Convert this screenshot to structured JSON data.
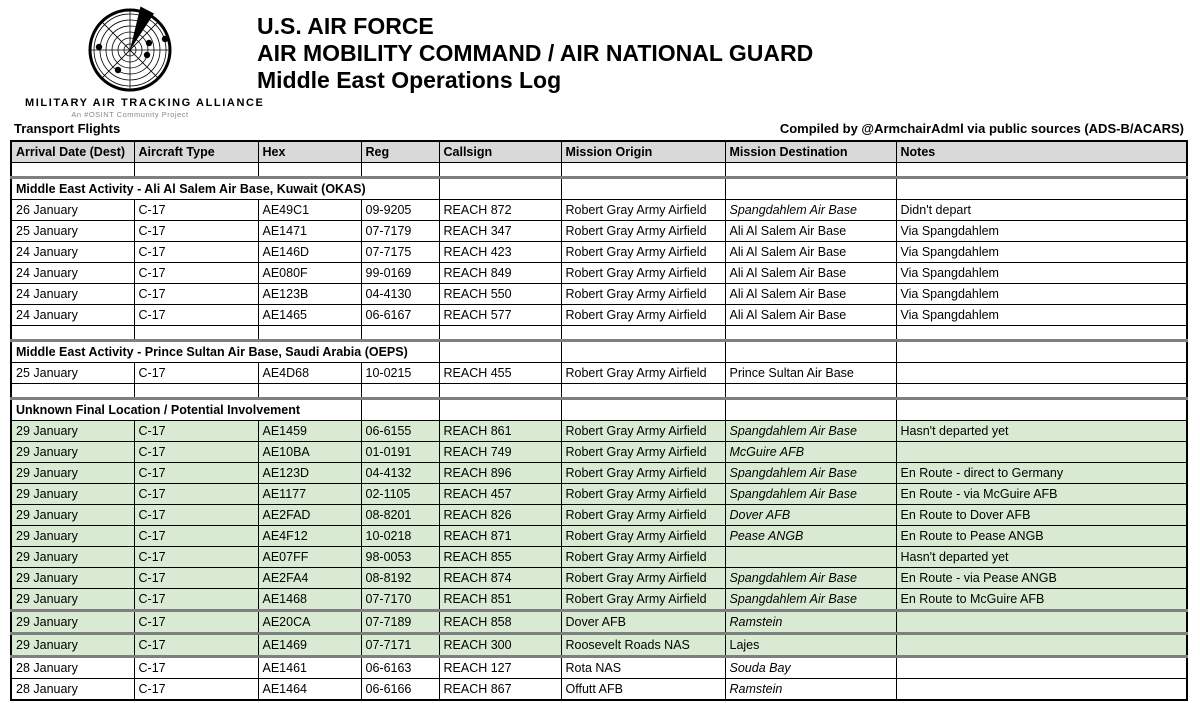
{
  "logo": {
    "org_name": "MILITARY AIR TRACKING ALLIANCE",
    "tagline": "An #OSINT Community Project"
  },
  "header": {
    "line1": "U.S. AIR FORCE",
    "line2": "AIR MOBILITY COMMAND / AIR NATIONAL GUARD",
    "line3": "Middle East Operations Log"
  },
  "subheader": {
    "left": "Transport Flights",
    "right": "Compiled by @ArmchairAdml via public sources (ADS-B/ACARS)"
  },
  "colors": {
    "header_bg": "#d9d9d9",
    "highlight_bg": "#d9ead3",
    "border": "#000000",
    "section_divider": "#7f7f7f"
  },
  "table": {
    "columns": [
      "Arrival Date (Dest)",
      "Aircraft Type",
      "Hex",
      "Reg",
      "Callsign",
      "Mission Origin",
      "Mission Destination",
      "Notes"
    ],
    "sections": [
      {
        "title": "Middle East Activity - Ali Al Salem Air Base, Kuwait (OKAS)",
        "title_colspan": 4,
        "rows": [
          {
            "date": "26 January",
            "type": "C-17",
            "hex": "AE49C1",
            "reg": "09-9205",
            "callsign": "REACH 872",
            "origin": "Robert Gray Army Airfield",
            "destination": "Spangdahlem Air Base",
            "dest_italic": true,
            "notes": "Didn't depart",
            "highlight": false
          },
          {
            "date": "25 January",
            "type": "C-17",
            "hex": "AE1471",
            "reg": "07-7179",
            "callsign": "REACH 347",
            "origin": "Robert Gray Army Airfield",
            "destination": "Ali Al Salem Air Base",
            "dest_italic": false,
            "notes": "Via Spangdahlem",
            "highlight": false
          },
          {
            "date": "24 January",
            "type": "C-17",
            "hex": "AE146D",
            "reg": "07-7175",
            "callsign": "REACH 423",
            "origin": "Robert Gray Army Airfield",
            "destination": "Ali Al Salem Air Base",
            "dest_italic": false,
            "notes": "Via Spangdahlem",
            "highlight": false
          },
          {
            "date": "24 January",
            "type": "C-17",
            "hex": "AE080F",
            "reg": "99-0169",
            "callsign": "REACH 849",
            "origin": "Robert Gray Army Airfield",
            "destination": "Ali Al Salem Air Base",
            "dest_italic": false,
            "notes": "Via Spangdahlem",
            "highlight": false
          },
          {
            "date": "24 January",
            "type": "C-17",
            "hex": "AE123B",
            "reg": "04-4130",
            "callsign": "REACH 550",
            "origin": "Robert Gray Army Airfield",
            "destination": "Ali Al Salem Air Base",
            "dest_italic": false,
            "notes": "Via Spangdahlem",
            "highlight": false
          },
          {
            "date": "24 January",
            "type": "C-17",
            "hex": "AE1465",
            "reg": "06-6167",
            "callsign": "REACH 577",
            "origin": "Robert Gray Army Airfield",
            "destination": "Ali Al Salem Air Base",
            "dest_italic": false,
            "notes": "Via Spangdahlem",
            "highlight": false
          }
        ]
      },
      {
        "title": "Middle East Activity - Prince Sultan Air Base, Saudi Arabia (OEPS)",
        "title_colspan": 4,
        "rows": [
          {
            "date": "25 January",
            "type": "C-17",
            "hex": "AE4D68",
            "reg": "10-0215",
            "callsign": "REACH 455",
            "origin": "Robert Gray Army Airfield",
            "destination": "Prince Sultan Air Base",
            "dest_italic": false,
            "notes": "",
            "highlight": false
          }
        ]
      },
      {
        "title": "Unknown Final Location / Potential Involvement",
        "title_colspan": 3,
        "rows": [
          {
            "date": "29 January",
            "type": "C-17",
            "hex": "AE1459",
            "reg": "06-6155",
            "callsign": "REACH 861",
            "origin": "Robert Gray Army Airfield",
            "destination": "Spangdahlem Air Base",
            "dest_italic": true,
            "notes": "Hasn't departed yet",
            "highlight": true
          },
          {
            "date": "29 January",
            "type": "C-17",
            "hex": "AE10BA",
            "reg": "01-0191",
            "callsign": "REACH 749",
            "origin": "Robert Gray Army Airfield",
            "destination": "McGuire AFB",
            "dest_italic": true,
            "notes": "",
            "highlight": true
          },
          {
            "date": "29 January",
            "type": "C-17",
            "hex": "AE123D",
            "reg": "04-4132",
            "callsign": "REACH 896",
            "origin": "Robert Gray Army Airfield",
            "destination": "Spangdahlem Air Base",
            "dest_italic": true,
            "notes": "En Route - direct to Germany",
            "highlight": true
          },
          {
            "date": "29 January",
            "type": "C-17",
            "hex": "AE1177",
            "reg": "02-1105",
            "callsign": "REACH 457",
            "origin": "Robert Gray Army Airfield",
            "destination": "Spangdahlem Air Base",
            "dest_italic": true,
            "notes": "En Route - via McGuire AFB",
            "highlight": true
          },
          {
            "date": "29 January",
            "type": "C-17",
            "hex": "AE2FAD",
            "reg": "08-8201",
            "callsign": "REACH 826",
            "origin": "Robert Gray Army Airfield",
            "destination": "Dover AFB",
            "dest_italic": true,
            "notes": "En Route to Dover AFB",
            "highlight": true
          },
          {
            "date": "29 January",
            "type": "C-17",
            "hex": "AE4F12",
            "reg": "10-0218",
            "callsign": "REACH 871",
            "origin": "Robert Gray Army Airfield",
            "destination": "Pease ANGB",
            "dest_italic": true,
            "notes": "En Route to Pease ANGB",
            "highlight": true
          },
          {
            "date": "29 January",
            "type": "C-17",
            "hex": "AE07FF",
            "reg": "98-0053",
            "callsign": "REACH 855",
            "origin": "Robert Gray Army Airfield",
            "destination": "",
            "dest_italic": false,
            "notes": "Hasn't departed yet",
            "highlight": true
          },
          {
            "date": "29 January",
            "type": "C-17",
            "hex": "AE2FA4",
            "reg": "08-8192",
            "callsign": "REACH 874",
            "origin": "Robert Gray Army Airfield",
            "destination": "Spangdahlem Air Base",
            "dest_italic": true,
            "notes": "En Route - via Pease ANGB",
            "highlight": true
          },
          {
            "date": "29 January",
            "type": "C-17",
            "hex": "AE1468",
            "reg": "07-7170",
            "callsign": "REACH 851",
            "origin": "Robert Gray Army Airfield",
            "destination": "Spangdahlem Air Base",
            "dest_italic": true,
            "notes": "En Route to McGuire AFB",
            "highlight": true
          },
          {
            "date": "29 January",
            "type": "C-17",
            "hex": "AE20CA",
            "reg": "07-7189",
            "callsign": "REACH 858",
            "origin": "Dover AFB",
            "destination": "Ramstein",
            "dest_italic": true,
            "notes": "",
            "highlight": true,
            "thick_top": true
          },
          {
            "date": "29 January",
            "type": "C-17",
            "hex": "AE1469",
            "reg": "07-7171",
            "callsign": "REACH 300",
            "origin": "Roosevelt Roads NAS",
            "destination": "Lajes",
            "dest_italic": false,
            "notes": "",
            "highlight": true,
            "thick_top": true
          },
          {
            "date": "28 January",
            "type": "C-17",
            "hex": "AE1461",
            "reg": "06-6163",
            "callsign": "REACH 127",
            "origin": "Rota NAS",
            "destination": "Souda Bay",
            "dest_italic": true,
            "notes": "",
            "highlight": false,
            "thick_top": true
          },
          {
            "date": "28 January",
            "type": "C-17",
            "hex": "AE1464",
            "reg": "06-6166",
            "callsign": "REACH 867",
            "origin": "Offutt AFB",
            "destination": "Ramstein",
            "dest_italic": true,
            "notes": "",
            "highlight": false
          }
        ]
      }
    ]
  }
}
